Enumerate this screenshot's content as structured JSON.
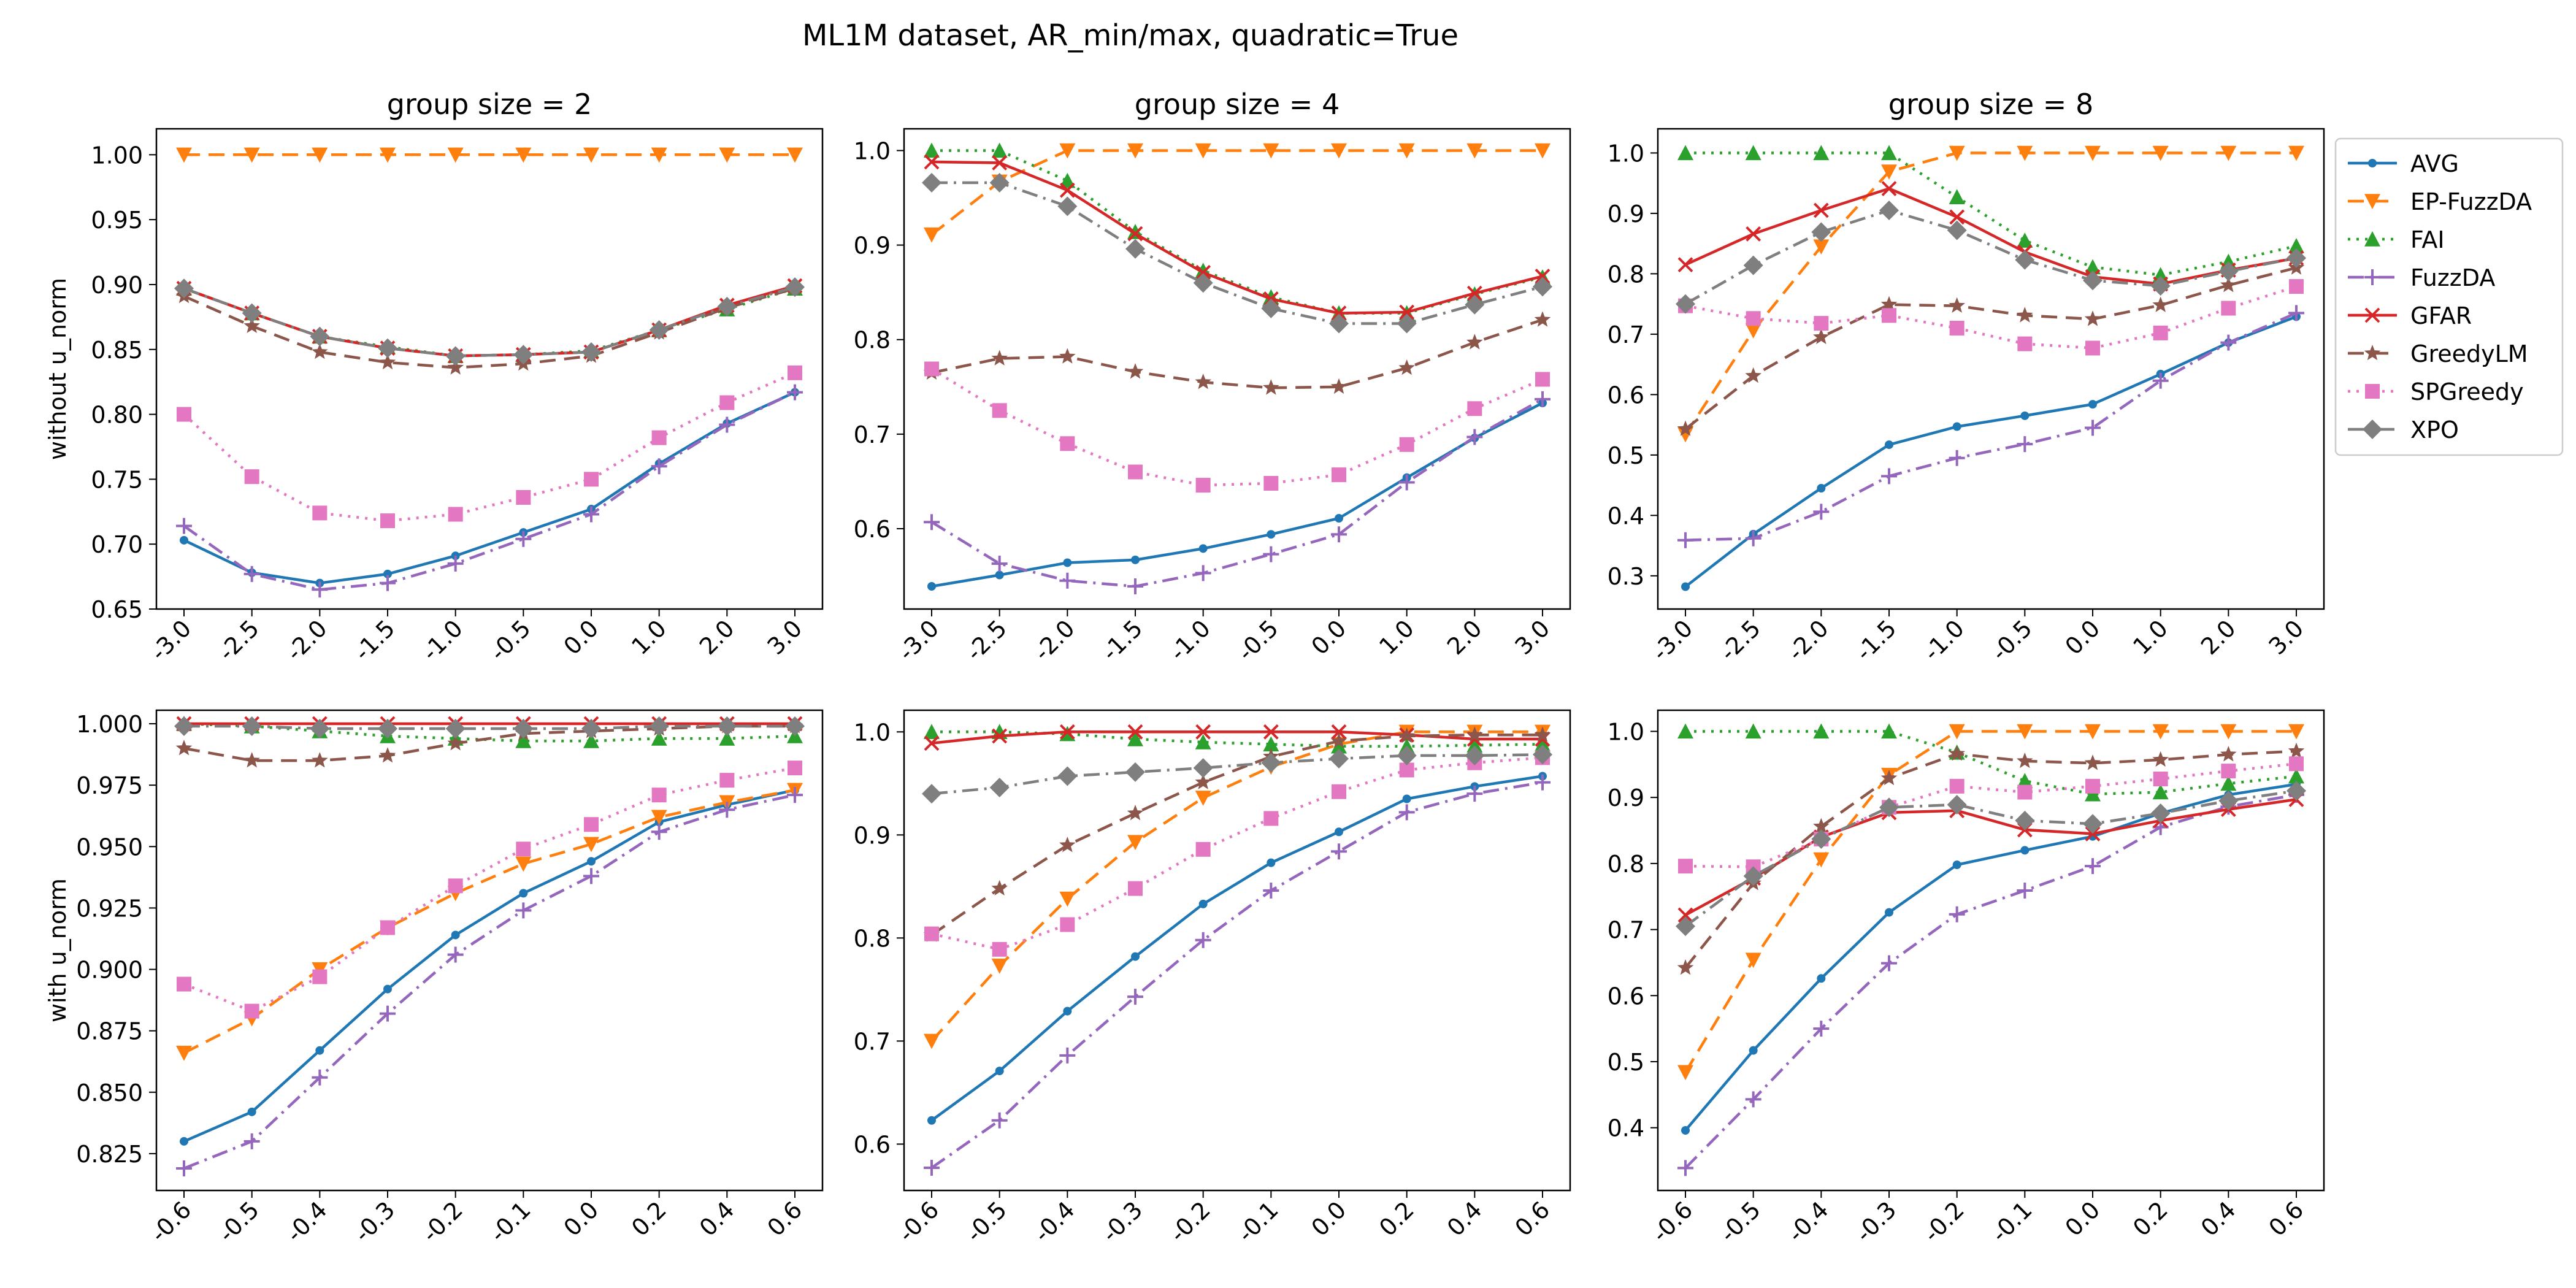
{
  "figure": {
    "title": "ML1M dataset, AR_min/max, quadratic=True"
  },
  "styles": {
    "AVG": {
      "color": "#1f77b4",
      "dash": "",
      "marker": "dot"
    },
    "EP-FuzzDA": {
      "color": "#ff7f0e",
      "dash": "26,14",
      "marker": "tri-down"
    },
    "FAI": {
      "color": "#2ca02c",
      "dash": "4,10",
      "marker": "tri-up"
    },
    "FuzzDA": {
      "color": "#9467bd",
      "dash": "26,10,4,10",
      "marker": "plus"
    },
    "GFAR": {
      "color": "#d62728",
      "dash": "",
      "marker": "x"
    },
    "GreedyLM": {
      "color": "#8c564b",
      "dash": "26,14",
      "marker": "star"
    },
    "SPGreedy": {
      "color": "#e377c2",
      "dash": "4,10",
      "marker": "square"
    },
    "XPO": {
      "color": "#7f7f7f",
      "dash": "26,10,4,10",
      "marker": "diamond"
    }
  },
  "legend": {
    "placement": "right-outside-top",
    "entries": [
      "AVG",
      "EP-FuzzDA",
      "FAI",
      "FuzzDA",
      "GFAR",
      "GreedyLM",
      "SPGreedy",
      "XPO"
    ]
  },
  "chart_data": [
    {
      "type": "line",
      "title": "group size = 2",
      "ylabel": "without u_norm",
      "categories": [
        "-3.0",
        "-2.5",
        "-2.0",
        "-1.5",
        "-1.0",
        "-0.5",
        "0.0",
        "1.0",
        "2.0",
        "3.0"
      ],
      "ylim": [
        0.65,
        1.02
      ],
      "yticks": [
        0.65,
        0.7,
        0.75,
        0.8,
        0.85,
        0.9,
        0.95,
        1.0
      ],
      "ytick_labels": [
        "0.65",
        "0.70",
        "0.75",
        "0.80",
        "0.85",
        "0.90",
        "0.95",
        "1.00"
      ],
      "series": [
        {
          "name": "AVG",
          "values": [
            0.703,
            0.678,
            0.67,
            0.677,
            0.691,
            0.709,
            0.727,
            0.762,
            0.793,
            0.817
          ]
        },
        {
          "name": "EP-FuzzDA",
          "values": [
            1.0,
            1.0,
            1.0,
            1.0,
            1.0,
            1.0,
            1.0,
            1.0,
            1.0,
            1.0
          ]
        },
        {
          "name": "FAI",
          "values": [
            0.897,
            0.878,
            0.86,
            0.852,
            0.845,
            0.846,
            0.849,
            0.865,
            0.881,
            0.897
          ]
        },
        {
          "name": "FuzzDA",
          "values": [
            0.714,
            0.677,
            0.665,
            0.67,
            0.685,
            0.704,
            0.723,
            0.76,
            0.792,
            0.817
          ]
        },
        {
          "name": "GFAR",
          "values": [
            0.897,
            0.878,
            0.86,
            0.851,
            0.845,
            0.846,
            0.848,
            0.865,
            0.884,
            0.899
          ]
        },
        {
          "name": "GreedyLM",
          "values": [
            0.891,
            0.868,
            0.848,
            0.84,
            0.836,
            0.839,
            0.845,
            0.863,
            0.882,
            0.897
          ]
        },
        {
          "name": "SPGreedy",
          "values": [
            0.8,
            0.752,
            0.724,
            0.718,
            0.723,
            0.736,
            0.75,
            0.782,
            0.809,
            0.832
          ]
        },
        {
          "name": "XPO",
          "values": [
            0.897,
            0.878,
            0.86,
            0.851,
            0.845,
            0.846,
            0.848,
            0.865,
            0.883,
            0.898
          ]
        }
      ]
    },
    {
      "type": "line",
      "title": "group size = 4",
      "ylabel": "",
      "categories": [
        "-3.0",
        "-2.5",
        "-2.0",
        "-1.5",
        "-1.0",
        "-0.5",
        "0.0",
        "1.0",
        "2.0",
        "3.0"
      ],
      "ylim": [
        0.515,
        1.023
      ],
      "yticks": [
        0.6,
        0.7,
        0.8,
        0.9,
        1.0
      ],
      "ytick_labels": [
        "0.6",
        "0.7",
        "0.8",
        "0.9",
        "1.0"
      ],
      "series": [
        {
          "name": "AVG",
          "values": [
            0.539,
            0.551,
            0.564,
            0.567,
            0.579,
            0.594,
            0.611,
            0.654,
            0.696,
            0.733
          ]
        },
        {
          "name": "EP-FuzzDA",
          "values": [
            0.911,
            0.967,
            1.0,
            1.0,
            1.0,
            1.0,
            1.0,
            1.0,
            1.0,
            1.0
          ]
        },
        {
          "name": "FAI",
          "values": [
            1.0,
            1.0,
            0.968,
            0.914,
            0.873,
            0.845,
            0.828,
            0.828,
            0.848,
            0.866
          ]
        },
        {
          "name": "FuzzDA",
          "values": [
            0.607,
            0.563,
            0.545,
            0.539,
            0.553,
            0.573,
            0.594,
            0.649,
            0.697,
            0.737
          ]
        },
        {
          "name": "GFAR",
          "values": [
            0.988,
            0.987,
            0.958,
            0.912,
            0.871,
            0.843,
            0.828,
            0.829,
            0.849,
            0.867
          ]
        },
        {
          "name": "GreedyLM",
          "values": [
            0.765,
            0.78,
            0.782,
            0.766,
            0.755,
            0.749,
            0.75,
            0.77,
            0.797,
            0.821
          ]
        },
        {
          "name": "SPGreedy",
          "values": [
            0.769,
            0.725,
            0.69,
            0.66,
            0.646,
            0.648,
            0.657,
            0.689,
            0.727,
            0.758
          ]
        },
        {
          "name": "XPO",
          "values": [
            0.966,
            0.966,
            0.941,
            0.896,
            0.86,
            0.833,
            0.817,
            0.817,
            0.837,
            0.856
          ]
        }
      ]
    },
    {
      "type": "line",
      "title": "group size = 8",
      "ylabel": "",
      "categories": [
        "-3.0",
        "-2.5",
        "-2.0",
        "-1.5",
        "-1.0",
        "-0.5",
        "0.0",
        "1.0",
        "2.0",
        "3.0"
      ],
      "ylim": [
        0.245,
        1.04
      ],
      "yticks": [
        0.3,
        0.4,
        0.5,
        0.6,
        0.7,
        0.8,
        0.9,
        1.0
      ],
      "ytick_labels": [
        "0.3",
        "0.4",
        "0.5",
        "0.6",
        "0.7",
        "0.8",
        "0.9",
        "1.0"
      ],
      "series": [
        {
          "name": "AVG",
          "values": [
            0.282,
            0.369,
            0.445,
            0.517,
            0.547,
            0.565,
            0.584,
            0.634,
            0.686,
            0.729
          ]
        },
        {
          "name": "EP-FuzzDA",
          "values": [
            0.534,
            0.706,
            0.845,
            0.969,
            1.0,
            1.0,
            1.0,
            1.0,
            1.0,
            1.0
          ]
        },
        {
          "name": "FAI",
          "values": [
            1.0,
            1.0,
            1.0,
            1.0,
            0.927,
            0.855,
            0.811,
            0.798,
            0.82,
            0.846
          ]
        },
        {
          "name": "FuzzDA",
          "values": [
            0.359,
            0.362,
            0.406,
            0.465,
            0.495,
            0.518,
            0.545,
            0.623,
            0.686,
            0.735
          ]
        },
        {
          "name": "GFAR",
          "values": [
            0.815,
            0.866,
            0.905,
            0.941,
            0.894,
            0.836,
            0.795,
            0.783,
            0.806,
            0.826
          ]
        },
        {
          "name": "GreedyLM",
          "values": [
            0.543,
            0.631,
            0.695,
            0.749,
            0.747,
            0.731,
            0.725,
            0.748,
            0.781,
            0.81
          ]
        },
        {
          "name": "SPGreedy",
          "values": [
            0.747,
            0.726,
            0.718,
            0.731,
            0.71,
            0.684,
            0.677,
            0.702,
            0.743,
            0.779
          ]
        },
        {
          "name": "XPO",
          "values": [
            0.75,
            0.814,
            0.869,
            0.905,
            0.872,
            0.823,
            0.789,
            0.78,
            0.804,
            0.826
          ]
        }
      ]
    },
    {
      "type": "line",
      "title": "",
      "ylabel": "with u_norm",
      "categories": [
        "-0.6",
        "-0.5",
        "-0.4",
        "-0.3",
        "-0.2",
        "-0.1",
        "0.0",
        "0.2",
        "0.4",
        "0.6"
      ],
      "ylim": [
        0.81,
        1.0055
      ],
      "yticks": [
        0.825,
        0.85,
        0.875,
        0.9,
        0.925,
        0.95,
        0.975,
        1.0
      ],
      "ytick_labels": [
        "0.825",
        "0.850",
        "0.875",
        "0.900",
        "0.925",
        "0.950",
        "0.975",
        "1.000"
      ],
      "series": [
        {
          "name": "AVG",
          "values": [
            0.83,
            0.842,
            0.867,
            0.892,
            0.914,
            0.931,
            0.944,
            0.96,
            0.967,
            0.973
          ]
        },
        {
          "name": "EP-FuzzDA",
          "values": [
            0.866,
            0.88,
            0.9,
            0.917,
            0.931,
            0.943,
            0.951,
            0.962,
            0.968,
            0.973
          ]
        },
        {
          "name": "FAI",
          "values": [
            1.0,
            0.999,
            0.997,
            0.995,
            0.994,
            0.993,
            0.993,
            0.994,
            0.994,
            0.995
          ]
        },
        {
          "name": "FuzzDA",
          "values": [
            0.819,
            0.83,
            0.856,
            0.882,
            0.906,
            0.924,
            0.938,
            0.956,
            0.965,
            0.971
          ]
        },
        {
          "name": "GFAR",
          "values": [
            1.0,
            1.0,
            1.0,
            1.0,
            1.0,
            1.0,
            1.0,
            1.0,
            1.0,
            1.0
          ]
        },
        {
          "name": "GreedyLM",
          "values": [
            0.99,
            0.985,
            0.985,
            0.987,
            0.992,
            0.996,
            0.997,
            0.998,
            0.999,
            0.999
          ]
        },
        {
          "name": "SPGreedy",
          "values": [
            0.894,
            0.883,
            0.897,
            0.917,
            0.934,
            0.949,
            0.959,
            0.971,
            0.977,
            0.982
          ]
        },
        {
          "name": "XPO",
          "values": [
            0.999,
            0.999,
            0.998,
            0.998,
            0.998,
            0.998,
            0.998,
            0.999,
            0.999,
            0.999
          ]
        }
      ]
    },
    {
      "type": "line",
      "title": "",
      "ylabel": "",
      "categories": [
        "-0.6",
        "-0.5",
        "-0.4",
        "-0.3",
        "-0.2",
        "-0.1",
        "0.0",
        "0.2",
        "0.4",
        "0.6"
      ],
      "ylim": [
        0.555,
        1.021
      ],
      "yticks": [
        0.6,
        0.7,
        0.8,
        0.9,
        1.0
      ],
      "ytick_labels": [
        "0.6",
        "0.7",
        "0.8",
        "0.9",
        "1.0"
      ],
      "series": [
        {
          "name": "AVG",
          "values": [
            0.623,
            0.671,
            0.729,
            0.782,
            0.833,
            0.873,
            0.903,
            0.935,
            0.947,
            0.957
          ]
        },
        {
          "name": "EP-FuzzDA",
          "values": [
            0.7,
            0.773,
            0.838,
            0.893,
            0.936,
            0.966,
            0.988,
            1.0,
            1.0,
            1.0
          ]
        },
        {
          "name": "FAI",
          "values": [
            1.0,
            1.0,
            0.998,
            0.993,
            0.99,
            0.988,
            0.986,
            0.986,
            0.987,
            0.988
          ]
        },
        {
          "name": "FuzzDA",
          "values": [
            0.577,
            0.623,
            0.686,
            0.743,
            0.798,
            0.846,
            0.884,
            0.922,
            0.94,
            0.951
          ]
        },
        {
          "name": "GFAR",
          "values": [
            0.989,
            0.996,
            1.0,
            1.0,
            1.0,
            1.0,
            1.0,
            0.997,
            0.993,
            0.993
          ]
        },
        {
          "name": "GreedyLM",
          "values": [
            0.803,
            0.848,
            0.89,
            0.921,
            0.951,
            0.976,
            0.991,
            0.996,
            0.997,
            0.997
          ]
        },
        {
          "name": "SPGreedy",
          "values": [
            0.804,
            0.789,
            0.813,
            0.848,
            0.886,
            0.916,
            0.942,
            0.963,
            0.97,
            0.975
          ]
        },
        {
          "name": "XPO",
          "values": [
            0.94,
            0.946,
            0.957,
            0.961,
            0.965,
            0.97,
            0.974,
            0.977,
            0.977,
            0.978
          ]
        }
      ]
    },
    {
      "type": "line",
      "title": "",
      "ylabel": "",
      "categories": [
        "-0.6",
        "-0.5",
        "-0.4",
        "-0.3",
        "-0.2",
        "-0.1",
        "0.0",
        "0.2",
        "0.4",
        "0.6"
      ],
      "ylim": [
        0.305,
        1.032
      ],
      "yticks": [
        0.4,
        0.5,
        0.6,
        0.7,
        0.8,
        0.9,
        1.0
      ],
      "ytick_labels": [
        "0.4",
        "0.5",
        "0.6",
        "0.7",
        "0.8",
        "0.9",
        "1.0"
      ],
      "series": [
        {
          "name": "AVG",
          "values": [
            0.396,
            0.517,
            0.626,
            0.726,
            0.798,
            0.82,
            0.841,
            0.876,
            0.904,
            0.92
          ]
        },
        {
          "name": "EP-FuzzDA",
          "values": [
            0.484,
            0.654,
            0.806,
            0.934,
            1.0,
            1.0,
            1.0,
            1.0,
            1.0,
            1.0
          ]
        },
        {
          "name": "FAI",
          "values": [
            1.0,
            1.0,
            1.0,
            1.0,
            0.968,
            0.925,
            0.905,
            0.908,
            0.921,
            0.932
          ]
        },
        {
          "name": "FuzzDA",
          "values": [
            0.339,
            0.443,
            0.55,
            0.649,
            0.723,
            0.759,
            0.796,
            0.855,
            0.886,
            0.904
          ]
        },
        {
          "name": "GFAR",
          "values": [
            0.722,
            0.778,
            0.84,
            0.877,
            0.88,
            0.851,
            0.845,
            0.865,
            0.882,
            0.897
          ]
        },
        {
          "name": "GreedyLM",
          "values": [
            0.642,
            0.77,
            0.856,
            0.929,
            0.966,
            0.955,
            0.952,
            0.957,
            0.965,
            0.97
          ]
        },
        {
          "name": "SPGreedy",
          "values": [
            0.796,
            0.795,
            0.837,
            0.885,
            0.917,
            0.908,
            0.917,
            0.928,
            0.94,
            0.951
          ]
        },
        {
          "name": "XPO",
          "values": [
            0.705,
            0.781,
            0.837,
            0.885,
            0.889,
            0.865,
            0.86,
            0.876,
            0.895,
            0.91
          ]
        }
      ]
    }
  ]
}
